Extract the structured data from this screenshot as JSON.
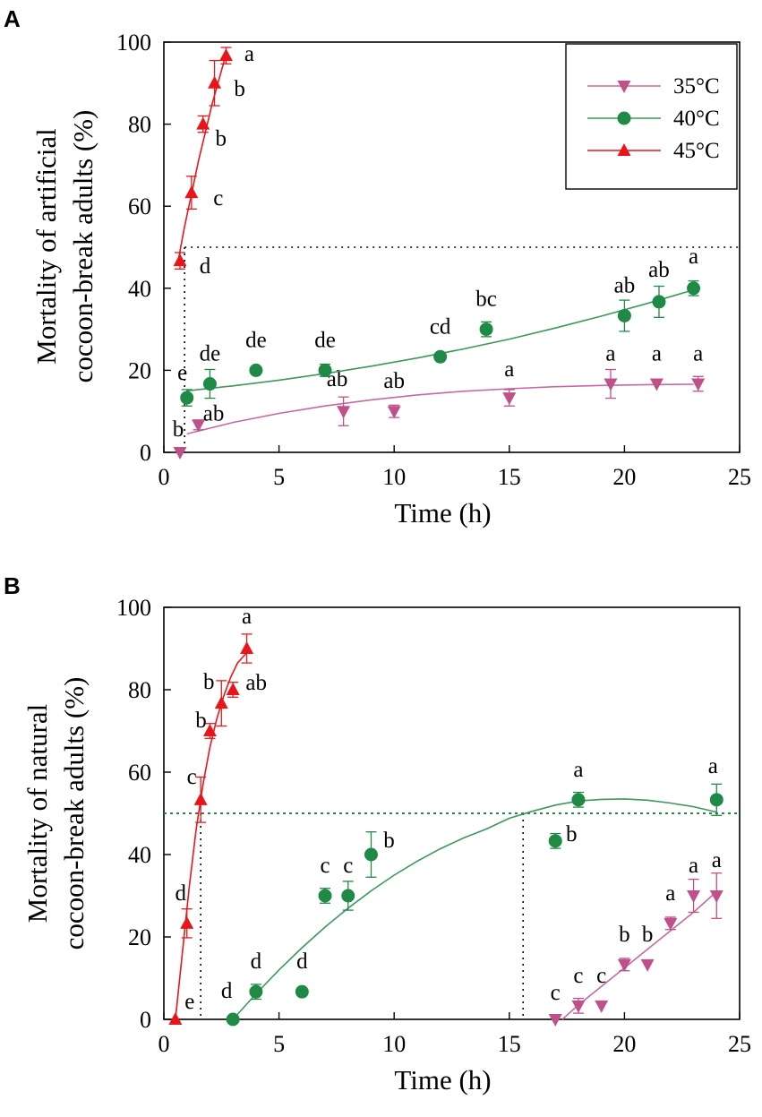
{
  "chart_data": [
    {
      "type": "scatter",
      "panel": "A",
      "xlabel": "Time (h)",
      "ylabel": [
        "Mortality of artificial",
        "cocoon-break adults (%)"
      ],
      "xlim": [
        0,
        25
      ],
      "ylim": [
        0,
        100
      ],
      "xticks": [
        0,
        5,
        10,
        15,
        20,
        25
      ],
      "yticks": [
        0,
        20,
        40,
        60,
        80,
        100
      ],
      "legend": {
        "position": "top-right",
        "entries": [
          {
            "name": "35°C",
            "marker": "triangle-down",
            "color": "#c0508a"
          },
          {
            "name": "40°C",
            "marker": "circle",
            "color": "#1f8a45"
          },
          {
            "name": "45°C",
            "marker": "triangle-up",
            "color": "#e8161b"
          }
        ]
      },
      "reference_lines": {
        "y": 50,
        "x": [
          0.9
        ]
      },
      "series": [
        {
          "name": "35°C",
          "color": "#c0508a",
          "line_color": "#c46aa0",
          "marker": "triangle-down",
          "x": [
            0.7,
            1.5,
            7.8,
            10,
            15,
            19.4,
            21.4,
            23.2
          ],
          "y": [
            0,
            6.7,
            10,
            10,
            13.3,
            16.7,
            16.7,
            16.7
          ],
          "err": [
            0,
            1.2,
            3.5,
            1.5,
            2,
            3.5,
            0,
            1.8
          ],
          "labels": [
            "b",
            "ab",
            "ab",
            "ab",
            "a",
            "a",
            "a",
            "a"
          ],
          "fit": {
            "x": [
              1,
              3,
              5,
              7,
              9,
              11,
              13,
              15,
              17,
              19,
              21,
              23
            ],
            "y": [
              4.5,
              7.3,
              9.5,
              11.3,
              12.8,
              14.0,
              14.9,
              15.5,
              16.0,
              16.3,
              16.5,
              16.6
            ]
          }
        },
        {
          "name": "40°C",
          "color": "#1f8a45",
          "line_color": "#3a9a5a",
          "marker": "circle",
          "x": [
            1,
            2,
            4,
            7,
            12,
            14,
            20,
            21.5,
            23
          ],
          "y": [
            13.3,
            16.7,
            20,
            20,
            23.3,
            30,
            33.3,
            36.7,
            40
          ],
          "err": [
            2,
            3.5,
            0,
            1.5,
            0,
            1.8,
            3.8,
            3.8,
            1.8
          ],
          "labels": [
            "e",
            "de",
            "de",
            "de",
            "cd",
            "bc",
            "ab",
            "ab",
            "a"
          ],
          "fit": {
            "x": [
              1,
              3,
              5,
              7,
              9,
              11,
              13,
              15,
              17,
              19,
              21,
              23
            ],
            "y": [
              15.0,
              16.2,
              17.6,
              19.2,
              21.0,
              23.0,
              25.2,
              27.6,
              30.3,
              33.2,
              36.3,
              39.6
            ]
          }
        },
        {
          "name": "45°C",
          "color": "#e8161b",
          "line_color": "#e8161b",
          "marker": "triangle-up",
          "x": [
            0.7,
            1.2,
            1.7,
            2.2,
            2.7
          ],
          "y": [
            46.7,
            63.3,
            80,
            90,
            96.7
          ],
          "err": [
            2,
            4,
            2,
            5.5,
            2
          ],
          "labels": [
            "d",
            "c",
            "b",
            "b",
            "a"
          ],
          "fit": {
            "x": [
              0.6,
              0.9,
              1.2,
              1.5,
              1.8,
              2.1,
              2.4,
              2.7
            ],
            "y": [
              46,
              55,
              63,
              71,
              78,
              85,
              91,
              97
            ]
          }
        }
      ]
    },
    {
      "type": "scatter",
      "panel": "B",
      "xlabel": "Time (h)",
      "ylabel": [
        "Mortality of natural",
        "cocoon-break adults  (%)"
      ],
      "xlim": [
        0,
        25
      ],
      "ylim": [
        0,
        100
      ],
      "xticks": [
        0,
        5,
        10,
        15,
        20,
        25
      ],
      "yticks": [
        0,
        20,
        40,
        60,
        80,
        100
      ],
      "reference_lines": {
        "y": 50,
        "x": [
          1.6,
          15.6
        ]
      },
      "series": [
        {
          "name": "35°C",
          "color": "#c0508a",
          "line_color": "#c46aa0",
          "marker": "triangle-down",
          "x": [
            17,
            18,
            19,
            20,
            21,
            22,
            23,
            24
          ],
          "y": [
            0,
            3.3,
            3.3,
            13.3,
            13.3,
            23.3,
            30,
            30
          ],
          "err": [
            0,
            1.8,
            0,
            1.5,
            0,
            1.5,
            4,
            5.5
          ],
          "labels": [
            "c",
            "c",
            "c",
            "b",
            "b",
            "a",
            "a",
            "a"
          ],
          "fit": {
            "x": [
              17.3,
              18,
              19,
              20,
              21,
              22,
              23,
              24
            ],
            "y": [
              0,
              3.5,
              8,
              12.5,
              17,
              21.5,
              26,
              31
            ]
          }
        },
        {
          "name": "40°C",
          "color": "#1f8a45",
          "line_color": "#3a9a5a",
          "marker": "circle",
          "x": [
            3,
            4,
            6,
            7,
            8,
            9,
            17,
            18,
            24
          ],
          "y": [
            0,
            6.7,
            6.7,
            30,
            30,
            40,
            43.3,
            53.3,
            53.3
          ],
          "err": [
            0,
            1.8,
            0,
            1.8,
            3.5,
            5.5,
            1.8,
            1.8,
            3.8
          ],
          "labels": [
            "d",
            "d",
            "d",
            "c",
            "c",
            "b",
            "b",
            "a",
            "a"
          ],
          "fit": {
            "x": [
              3,
              4,
              5,
              6,
              7,
              8,
              9,
              10,
              11,
              12,
              13,
              14,
              15,
              16,
              17,
              18,
              19,
              20,
              21,
              22,
              23,
              24
            ],
            "y": [
              0,
              6.2,
              12.0,
              17.4,
              22.4,
              27.0,
              31.2,
              35.0,
              38.4,
              41.4,
              44.0,
              46.2,
              48.8,
              50.5,
              52.0,
              53.0,
              53.4,
              53.5,
              53.2,
              52.5,
              51.6,
              50.3
            ]
          }
        },
        {
          "name": "45°C",
          "color": "#e8161b",
          "line_color": "#e8161b",
          "marker": "triangle-up",
          "x": [
            0.5,
            1,
            1.6,
            2,
            2.5,
            3,
            3.6
          ],
          "y": [
            0,
            23.3,
            53.3,
            70,
            76.7,
            80,
            90
          ],
          "err": [
            0,
            3.5,
            5.5,
            1.8,
            5.5,
            1.8,
            3.5
          ],
          "labels": [
            "e",
            "d",
            "c",
            "b",
            "b",
            "ab",
            "a"
          ],
          "fit": {
            "x": [
              0.5,
              0.8,
              1.1,
              1.4,
              1.7,
              2.0,
              2.3,
              2.6,
              2.9,
              3.2,
              3.6
            ],
            "y": [
              0,
              16,
              32,
              46,
              57,
              66,
              73,
              78.5,
              83,
              86.5,
              89
            ]
          }
        }
      ]
    }
  ]
}
